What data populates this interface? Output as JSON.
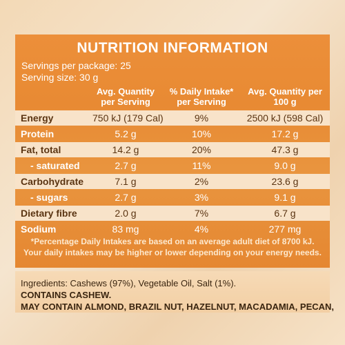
{
  "title": "NUTRITION INFORMATION",
  "servings_per_package": "Servings per package: 25",
  "serving_size": "Serving size: 30 g",
  "columns": {
    "avg_serving": "Avg. Quantity per Serving",
    "daily_intake": "% Daily Intake* per Serving",
    "avg_100g": "Avg. Quantity per 100 g"
  },
  "rows": [
    {
      "label": "Energy",
      "per_serving": "750 kJ (179 Cal)",
      "daily": "9%",
      "per_100g": "2500 kJ (598 Cal)"
    },
    {
      "label": "Protein",
      "per_serving": "5.2 g",
      "daily": "10%",
      "per_100g": "17.2 g"
    },
    {
      "label": "Fat, total",
      "per_serving": "14.2 g",
      "daily": "20%",
      "per_100g": "47.3 g"
    },
    {
      "label": "- saturated",
      "per_serving": "2.7 g",
      "daily": "11%",
      "per_100g": "9.0 g"
    },
    {
      "label": "Carbohydrate",
      "per_serving": "7.1 g",
      "daily": "2%",
      "per_100g": "23.6 g"
    },
    {
      "label": "- sugars",
      "per_serving": "2.7 g",
      "daily": "3%",
      "per_100g": "9.1 g"
    },
    {
      "label": "Dietary fibre",
      "per_serving": "2.0 g",
      "daily": "7%",
      "per_100g": "6.7 g"
    },
    {
      "label": "Sodium",
      "per_serving": "83 mg",
      "daily": "4%",
      "per_100g": "277 mg"
    }
  ],
  "footnote_1": "*Percentage Daily Intakes are based on an average adult diet of 8700 kJ.",
  "footnote_2": "Your daily intakes may be higher or lower depending on your energy needs.",
  "ingredients": "Ingredients: Cashews (97%), Vegetable Oil, Salt (1%).",
  "contains": "CONTAINS CASHEW.",
  "may_contain": "MAY CONTAIN ALMOND, BRAZIL NUT, HAZELNUT, MACADAMIA, PECAN,"
}
